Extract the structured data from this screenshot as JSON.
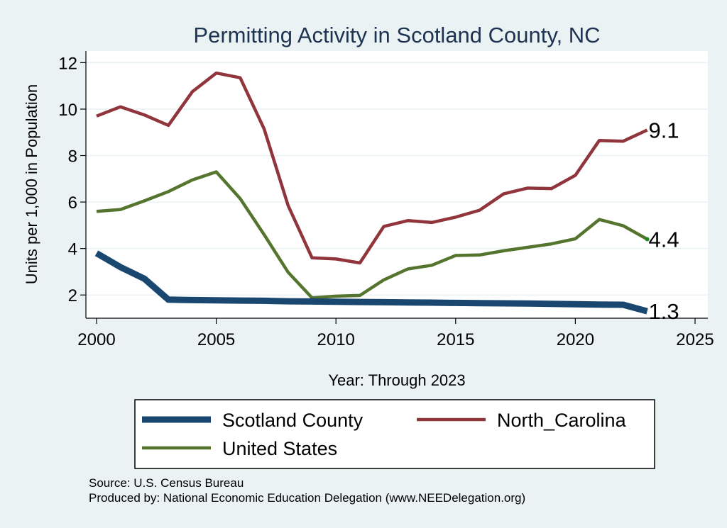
{
  "chart_data": {
    "type": "line",
    "title": "Permitting Activity in Scotland County, NC",
    "xlabel": "Year: Through 2023",
    "ylabel": "Units per 1,000 in Population",
    "xlim": [
      2000,
      2025
    ],
    "ylim": [
      1,
      12.5
    ],
    "x_ticks": [
      "2000",
      "2005",
      "2010",
      "2015",
      "2020",
      "2025"
    ],
    "y_ticks": [
      "2",
      "4",
      "6",
      "8",
      "10",
      "12"
    ],
    "x": [
      2000,
      2001,
      2002,
      2003,
      2004,
      2005,
      2006,
      2007,
      2008,
      2009,
      2010,
      2011,
      2012,
      2013,
      2014,
      2015,
      2016,
      2017,
      2018,
      2019,
      2020,
      2021,
      2022,
      2023
    ],
    "series": [
      {
        "name": "Scotland County",
        "color": "#1a476f",
        "values": [
          3.8,
          3.2,
          2.7,
          1.8,
          1.78,
          1.77,
          1.76,
          1.75,
          1.73,
          1.72,
          1.71,
          1.7,
          1.69,
          1.68,
          1.67,
          1.66,
          1.65,
          1.64,
          1.63,
          1.62,
          1.6,
          1.59,
          1.58,
          1.3
        ],
        "end_label": "1.3"
      },
      {
        "name": "North_Carolina",
        "color": "#90353b",
        "values": [
          9.7,
          10.1,
          9.75,
          9.3,
          10.75,
          11.55,
          11.35,
          9.15,
          5.85,
          3.6,
          3.55,
          3.38,
          4.95,
          5.2,
          5.12,
          5.35,
          5.65,
          6.35,
          6.6,
          6.58,
          7.15,
          8.65,
          8.62,
          9.1
        ],
        "end_label": "9.1"
      },
      {
        "name": "United States",
        "color": "#55752f",
        "values": [
          5.6,
          5.68,
          6.05,
          6.45,
          6.95,
          7.3,
          6.15,
          4.6,
          2.98,
          1.88,
          1.95,
          1.98,
          2.65,
          3.12,
          3.28,
          3.7,
          3.72,
          3.9,
          4.05,
          4.2,
          4.42,
          5.25,
          4.98,
          4.4
        ],
        "end_label": "4.4"
      }
    ],
    "legend": [
      "Scotland County",
      "North_Carolina",
      "United States"
    ],
    "legend_position": "bottom",
    "grid": true
  },
  "notes": {
    "source": "Source: U.S. Census Bureau",
    "produced_by": "Produced by: National Economic Education Delegation (www.NEEDelegation.org)"
  }
}
